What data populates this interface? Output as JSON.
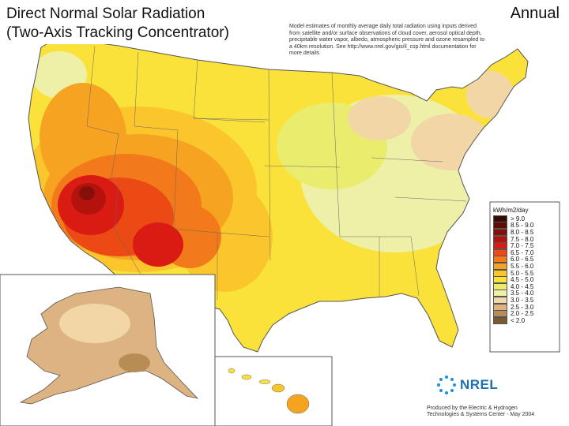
{
  "header": {
    "title_line1": "Direct Normal Solar Radiation",
    "title_line2": "(Two-Axis Tracking Concentrator)",
    "period": "Annual"
  },
  "notes": {
    "text": "Model estimates of monthly average daily total radiation using inputs derived from satellite and/or surface observations of cloud cover, aerosol optical depth, precipitable water vapor, albedo, atmospheric pressure and ozone resampled to a 40km resolution. See http://www.nrel.gov/gis/il_csp.html documentation for more details"
  },
  "legend": {
    "title": "kWh/m2/day",
    "items": [
      {
        "label": "> 9.0",
        "color": "#3a0a04"
      },
      {
        "label": "8.5 - 9.0",
        "color": "#5c0d07"
      },
      {
        "label": "8.0 - 8.5",
        "color": "#861009"
      },
      {
        "label": "7.5 - 8.0",
        "color": "#b3120d"
      },
      {
        "label": "7.0 - 7.5",
        "color": "#d91b14"
      },
      {
        "label": "6.5 - 7.0",
        "color": "#ec4a14"
      },
      {
        "label": "6.0 - 6.5",
        "color": "#f27a1a"
      },
      {
        "label": "5.5 - 6.0",
        "color": "#f7a322"
      },
      {
        "label": "5.0 - 5.5",
        "color": "#fbc52c"
      },
      {
        "label": "4.5 - 5.0",
        "color": "#fbe23a"
      },
      {
        "label": "4.0 - 4.5",
        "color": "#eaec6e"
      },
      {
        "label": "3.5 - 4.0",
        "color": "#eef0a8"
      },
      {
        "label": "3.0 - 3.5",
        "color": "#f3d6a6"
      },
      {
        "label": "2.5 - 3.0",
        "color": "#dcb381"
      },
      {
        "label": "2.0 - 2.5",
        "color": "#b88c55"
      },
      {
        "label": "< 2.0",
        "color": "#7a5a2e"
      }
    ]
  },
  "logo": {
    "text": "NREL"
  },
  "credit": {
    "line1": "Produced by the Electric & Hydrogen",
    "line2": "Technologies & Systems Center - May 2004"
  }
}
